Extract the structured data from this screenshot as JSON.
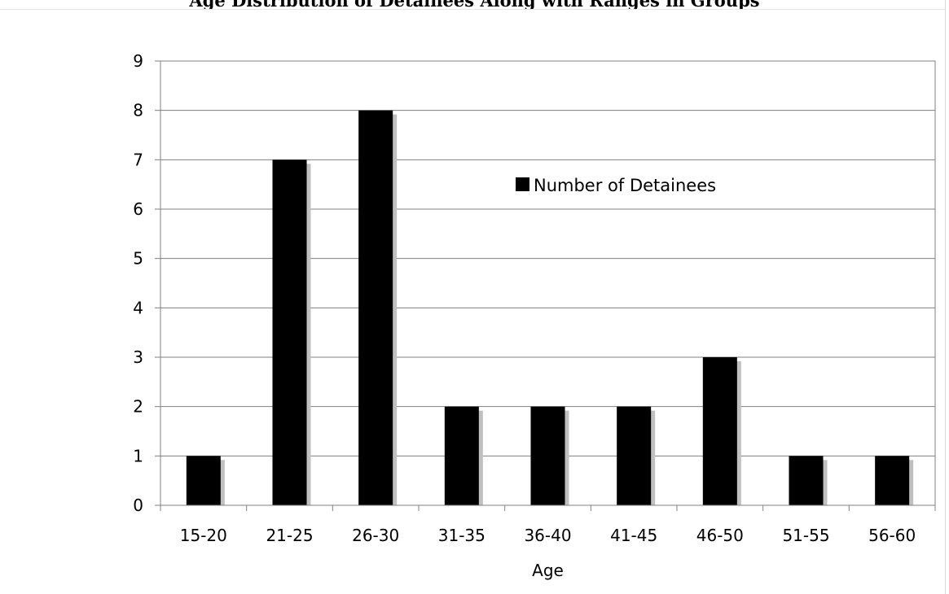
{
  "header": {
    "title": "Age Distribution of Detainees Along with Ranges in Groups"
  },
  "chart_data": {
    "type": "bar",
    "title": "",
    "xlabel": "Age",
    "ylabel": "",
    "categories": [
      "15-20",
      "21-25",
      "26-30",
      "31-35",
      "36-40",
      "41-45",
      "46-50",
      "51-55",
      "56-60"
    ],
    "series": [
      {
        "name": "Number of Detainees",
        "values": [
          1,
          7,
          8,
          2,
          2,
          2,
          3,
          1,
          1
        ]
      }
    ],
    "ylim": [
      0,
      9
    ],
    "yticks": [
      0,
      1,
      2,
      3,
      4,
      5,
      6,
      7,
      8,
      9
    ],
    "grid": true,
    "legend_position": "inside-top-right",
    "colors": {
      "bar": "#000000",
      "shadow": "#c0c0c0",
      "grid": "#808080",
      "axis": "#808080"
    }
  }
}
